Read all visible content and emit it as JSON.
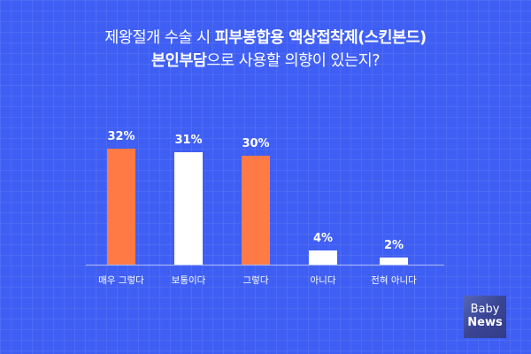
{
  "title": {
    "line1_regular": "제왕절개 수술 시 ",
    "line1_bold": "피부봉합용 액상접착제(스킨본드)",
    "line2_bold": "본인부담",
    "line2_regular": "으로 사용할 의향이 있는지?"
  },
  "logo": {
    "line1": "Baby",
    "line2": "News"
  },
  "colors": {
    "background": "#3f5ff4",
    "orange": "#ff7a45",
    "white": "#ffffff"
  },
  "chart_data": {
    "type": "bar",
    "title": "제왕절개 수술 시 피부봉합용 액상접착제(스킨본드) 본인부담으로 사용할 의향이 있는지?",
    "categories": [
      "매우 그렇다",
      "보통이다",
      "그렇다",
      "아니다",
      "전혀 아니다"
    ],
    "values": [
      32,
      31,
      30,
      4,
      2
    ],
    "value_labels": [
      "32%",
      "31%",
      "30%",
      "4%",
      "2%"
    ],
    "bar_colors": [
      "#ff7a45",
      "#ffffff",
      "#ff7a45",
      "#ffffff",
      "#ffffff"
    ],
    "xlabel": "",
    "ylabel": "",
    "unit": "%",
    "grid": false,
    "legend": "none"
  }
}
